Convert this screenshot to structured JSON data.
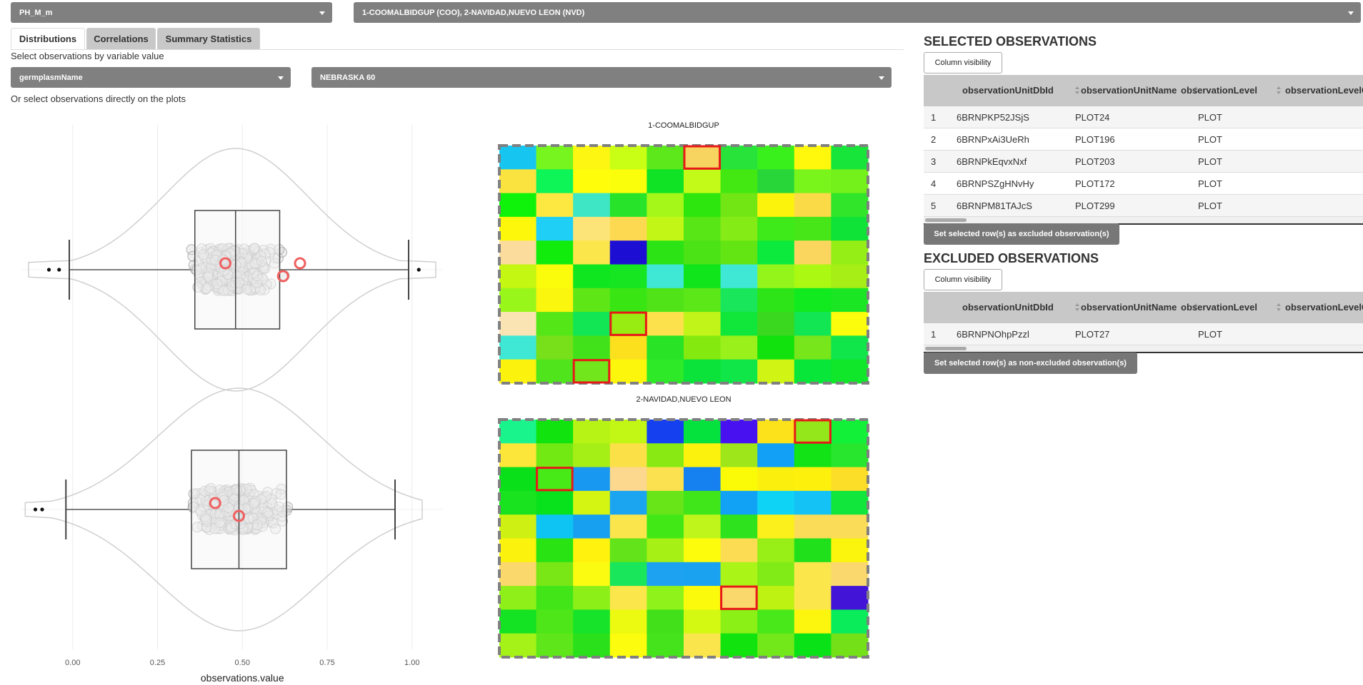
{
  "top_selects": {
    "variable": "PH_M_m",
    "studies": "1-COOMALBIDGUP (COO), 2-NAVIDAD,NUEVO LEON (NVD)"
  },
  "tabs": [
    {
      "label": "Distributions",
      "active": true
    },
    {
      "label": "Correlations",
      "active": false
    },
    {
      "label": "Summary Statistics",
      "active": false
    }
  ],
  "filter": {
    "instruction": "Select observations by variable value",
    "variable": "germplasmName",
    "value": "NEBRASKA 60",
    "plots_instruction": "Or select observations directly on the plots"
  },
  "distribution_plot": {
    "x_axis_label": "observations.value",
    "x_ticks": [
      "0.00",
      "0.25",
      "0.50",
      "0.75",
      "1.00"
    ],
    "x_range": [
      -0.13,
      1.07
    ],
    "groups": [
      {
        "q1": 0.36,
        "median": 0.48,
        "q3": 0.61,
        "whisker_low": -0.01,
        "whisker_high": 0.99,
        "outliers": [
          -0.07,
          -0.04,
          1.02
        ],
        "selected": [
          0.45,
          0.62,
          0.67
        ]
      },
      {
        "q1": 0.35,
        "median": 0.49,
        "q3": 0.63,
        "whisker_low": -0.02,
        "whisker_high": 0.95,
        "outliers": [
          -0.11,
          -0.09
        ],
        "selected": [
          0.42,
          0.49
        ]
      }
    ]
  },
  "heatmaps": [
    {
      "title": "1-COOMALBIDGUP",
      "grid": [
        [
          "#17c6f0",
          "#77f51e",
          "#fdf612",
          "#c8ff14",
          "#5de81c",
          "#f7d460",
          "#28e43a",
          "#39f01c",
          "#fff70c",
          "#18e53a"
        ],
        [
          "#fbe33f",
          "#0df556",
          "#fffd0a",
          "#fbfe0a",
          "#10e326",
          "#c3fa18",
          "#43e812",
          "#28d63a",
          "#7af51c",
          "#74f01a"
        ],
        [
          "#0ff30a",
          "#fce840",
          "#3ee6c6",
          "#27e42a",
          "#a4f719",
          "#2de60e",
          "#71e614",
          "#fcf30c",
          "#fbda48",
          "#31e52a"
        ],
        [
          "#fcf70b",
          "#20cff5",
          "#fde478",
          "#fcd950",
          "#c2f616",
          "#59e616",
          "#85eb16",
          "#3eea1a",
          "#47e618",
          "#10e337"
        ],
        [
          "#fbdc9c",
          "#11ec0c",
          "#fbe64c",
          "#1d0ed3",
          "#2ce315",
          "#4be216",
          "#62e512",
          "#0bea3d",
          "#fbd65f",
          "#96ee17"
        ],
        [
          "#c4f712",
          "#fbfb0c",
          "#10e61f",
          "#16e622",
          "#3ee8d4",
          "#0fe51a",
          "#3ee8d4",
          "#94f51b",
          "#abf813",
          "#a6ee15"
        ],
        [
          "#98f61a",
          "#fbf60e",
          "#5ee617",
          "#39e614",
          "#4fe318",
          "#5ce818",
          "#19e65a",
          "#2de418",
          "#10ea1e",
          "#1be624"
        ],
        [
          "#fbe4b4",
          "#55e618",
          "#12e654",
          "#99ec12",
          "#fce14c",
          "#c1f418",
          "#11e63a",
          "#3ad81e",
          "#13e653",
          "#fbfd0c"
        ],
        [
          "#3ee8d4",
          "#77e01a",
          "#42e21a",
          "#fce01e",
          "#28e326",
          "#84e90f",
          "#99f01a",
          "#11e20d",
          "#77e61a",
          "#10e64a"
        ],
        [
          "#fbf30e",
          "#4fe41c",
          "#71e61c",
          "#fcf60c",
          "#2ee928",
          "#0be23a",
          "#11e648",
          "#d0f414",
          "#08e63a",
          "#10e62a"
        ]
      ],
      "highlighted": [
        [
          0,
          5
        ],
        [
          7,
          3
        ],
        [
          9,
          2
        ]
      ]
    },
    {
      "title": "2-NAVIDAD,NUEVO LEON",
      "grid": [
        [
          "#1af48d",
          "#10e30e",
          "#b8f316",
          "#c2f614",
          "#1440f0",
          "#06e23d",
          "#4812f0",
          "#fbe21a",
          "#94e71a",
          "#12f038"
        ],
        [
          "#fbe639",
          "#73e914",
          "#a6ef16",
          "#fbe048",
          "#89ea13",
          "#fbf20e",
          "#9ee51a",
          "#11a0f5",
          "#12e317",
          "#28e62d"
        ],
        [
          "#0ae01a",
          "#47e917",
          "#1898f0",
          "#fbd88e",
          "#fbe14f",
          "#1580f0",
          "#fbfb08",
          "#fbef0e",
          "#fdf00c",
          "#fcde28"
        ],
        [
          "#19e31e",
          "#08e21c",
          "#d4f412",
          "#1ba5f0",
          "#67e518",
          "#40e61a",
          "#12a2f5",
          "#0fd3f5",
          "#14c2f5",
          "#10e63c"
        ],
        [
          "#cff013",
          "#0ec4f3",
          "#17a0f0",
          "#fbe54c",
          "#42e816",
          "#bff51a",
          "#2ee31e",
          "#fbef1c",
          "#fbdc58",
          "#fbdc58"
        ],
        [
          "#fbf20e",
          "#2ae312",
          "#fef20e",
          "#62e31a",
          "#a7f016",
          "#fcfc0c",
          "#fbdc52",
          "#98ee17",
          "#1fe01a",
          "#fbf40c"
        ],
        [
          "#fbd86c",
          "#79e616",
          "#fbfb12",
          "#19e65a",
          "#1ca2f0",
          "#1aa2f0",
          "#aaf418",
          "#81eb18",
          "#fbe64c",
          "#fbd86e"
        ],
        [
          "#8ef018",
          "#42e618",
          "#8cf018",
          "#fbe64c",
          "#8ff21b",
          "#fcfa0c",
          "#fbd86c",
          "#bdf212",
          "#fbe64c",
          "#4114d8"
        ],
        [
          "#13e322",
          "#4ee618",
          "#16e32a",
          "#ebfa10",
          "#41e01a",
          "#d3f912",
          "#8af016",
          "#48e81a",
          "#fcf60e",
          "#0aec5a"
        ],
        [
          "#a4f218",
          "#5ee61a",
          "#2ae01a",
          "#fcfc0e",
          "#45e31c",
          "#fbe54c",
          "#10e30e",
          "#72e81a",
          "#0ae218",
          "#74e018"
        ]
      ],
      "highlighted": [
        [
          0,
          8
        ],
        [
          2,
          1
        ],
        [
          7,
          6
        ]
      ]
    }
  ],
  "selected_observations": {
    "title": "SELECTED OBSERVATIONS",
    "column_visibility": "Column visibility",
    "columns": [
      "observationUnitDbId",
      "observationUnitName",
      "observationLevel",
      "observationLevelCode"
    ],
    "rows": [
      {
        "n": "1",
        "id": "6BRNPKP52JSjS",
        "name": "PLOT24",
        "level": "PLOT"
      },
      {
        "n": "2",
        "id": "6BRNPxAi3UeRh",
        "name": "PLOT196",
        "level": "PLOT"
      },
      {
        "n": "3",
        "id": "6BRNPkEqvxNxf",
        "name": "PLOT203",
        "level": "PLOT"
      },
      {
        "n": "4",
        "id": "6BRNPSZgHNvHy",
        "name": "PLOT172",
        "level": "PLOT"
      },
      {
        "n": "5",
        "id": "6BRNPM81TAJcS",
        "name": "PLOT299",
        "level": "PLOT"
      }
    ],
    "action_button": "Set selected row(s) as excluded observation(s)"
  },
  "excluded_observations": {
    "title": "EXCLUDED OBSERVATIONS",
    "column_visibility": "Column visibility",
    "columns": [
      "observationUnitDbId",
      "observationUnitName",
      "observationLevel",
      "observationLevelCode"
    ],
    "rows": [
      {
        "n": "1",
        "id": "6BRNPNOhpPzzl",
        "name": "PLOT27",
        "level": "PLOT"
      }
    ],
    "action_button": "Set selected row(s) as non-excluded observation(s)"
  },
  "colors": {
    "select_bg": "#808080",
    "highlight": "#e81818",
    "table_header_bg": "#c8c8c8"
  }
}
